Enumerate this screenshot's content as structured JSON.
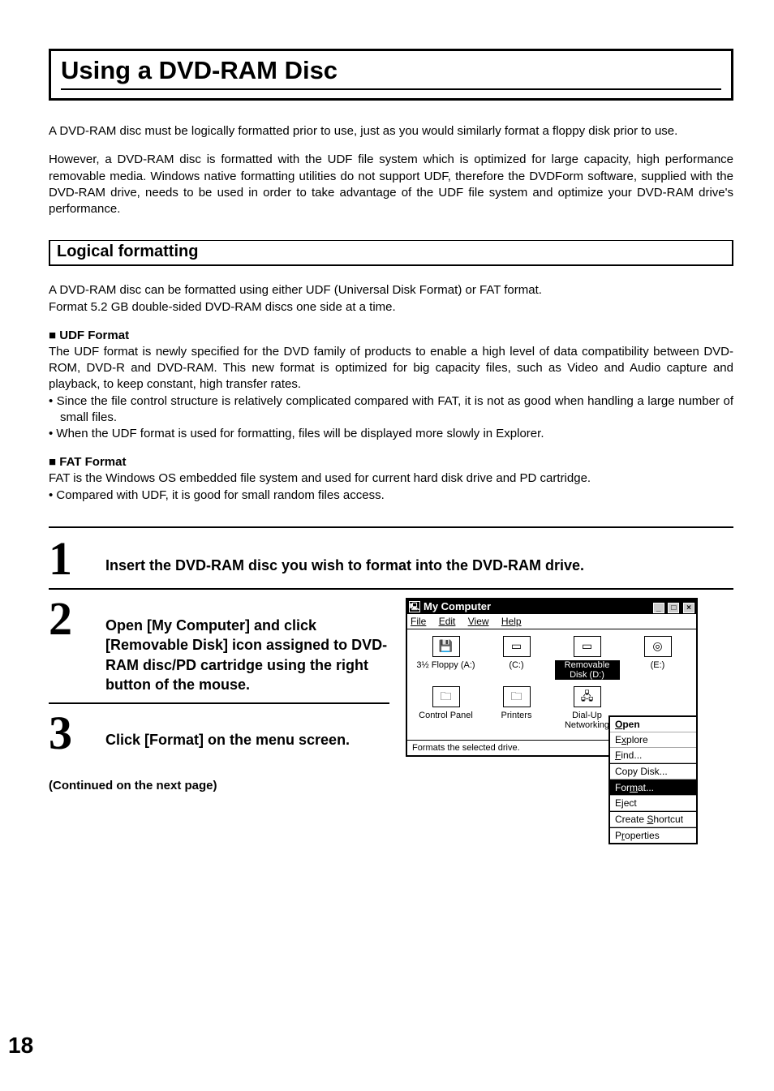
{
  "page_number": "18",
  "title": "Using a DVD-RAM Disc",
  "intro_p1": "A DVD-RAM disc must be logically formatted prior to use, just as you would similarly format a floppy disk prior to use.",
  "intro_p2": "However, a DVD-RAM disc is formatted with the UDF file system which is optimized for large capacity, high performance removable media. Windows native formatting utilities do not support UDF, therefore the DVDForm software, supplied with the DVD-RAM drive, needs to be used in order to take advantage of the UDF file system and optimize your DVD-RAM drive's performance.",
  "section_heading": "Logical formatting",
  "logical_p1": "A DVD-RAM disc can be formatted using either UDF (Universal Disk Format) or FAT format.",
  "logical_p2": "Format 5.2 GB double-sided DVD-RAM discs one side at a time.",
  "udf_heading": "UDF Format",
  "udf_p": "The UDF format is newly specified for the DVD family of products to enable a high level of data compatibility between DVD-ROM, DVD-R and DVD-RAM. This new format is optimized for big capacity files, such as Video and Audio capture and playback, to keep constant, high transfer rates.",
  "udf_b1": "Since the file control structure is relatively complicated compared with FAT, it is not as good when handling a large number of small files.",
  "udf_b2": "When the UDF format is used for formatting, files will be displayed more slowly in Explorer.",
  "fat_heading": "FAT Format",
  "fat_p": "FAT is the Windows OS embedded file system and used for current hard disk drive and PD cartridge.",
  "fat_b1": "Compared with UDF, it is good for small random files access.",
  "steps": {
    "s1_num": "1",
    "s1_text": "Insert the DVD-RAM disc you wish to format into the DVD-RAM drive.",
    "s2_num": "2",
    "s2_text": "Open [My Computer] and click [Removable Disk] icon assigned to DVD-RAM disc/PD cartridge using the right button of the mouse.",
    "s3_num": "3",
    "s3_text": "Click [Format] on the menu screen."
  },
  "continued": "(Continued on the next page)",
  "window": {
    "title": "My Computer",
    "menu_file": "File",
    "menu_edit": "Edit",
    "menu_view": "View",
    "menu_help": "Help",
    "icons": {
      "floppy": "3½ Floppy (A:)",
      "c": "(C:)",
      "removable": "Removable Disk (D:)",
      "e": "(E:)",
      "cpl": "Control Panel",
      "printers": "Printers",
      "dialup": "Dial-Up Networking"
    },
    "status": "Formats the selected drive.",
    "cmenu": {
      "open": "Open",
      "explore": "Explore",
      "find": "Find...",
      "copy": "Copy Disk...",
      "format": "Format...",
      "eject": "Eject",
      "shortcut": "Create Shortcut",
      "properties": "Properties"
    }
  }
}
